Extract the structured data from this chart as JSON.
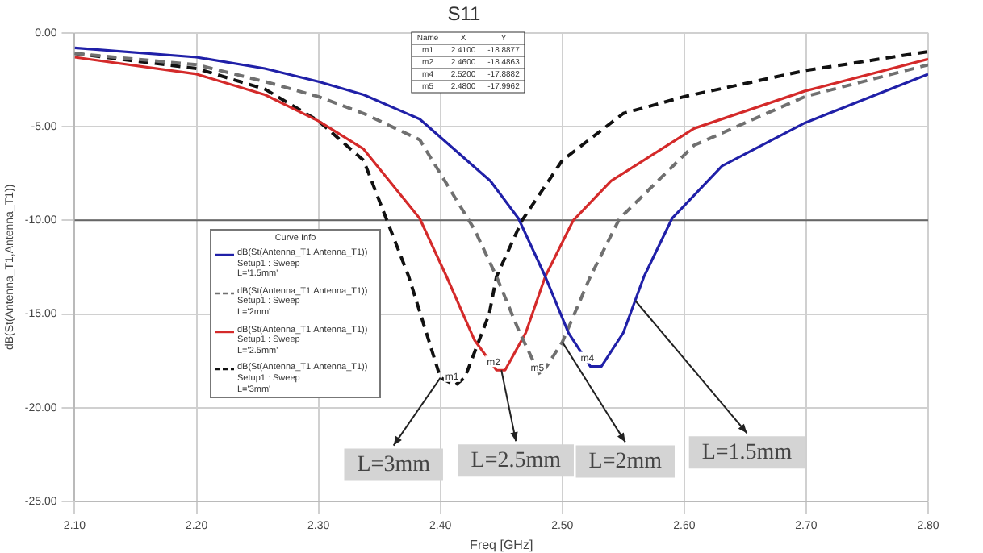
{
  "chart_data": {
    "type": "line",
    "title": "S11",
    "xlabel": "Freq [GHz]",
    "ylabel": "dB(St(Antenna_T1,Antenna_T1))",
    "legend_title": "Curve Info",
    "ref_lines": [
      {
        "axis": "y",
        "value": -10,
        "color": "#666666"
      }
    ],
    "legend": "left",
    "grid": true,
    "marker": "none",
    "xlim": [
      2.1,
      2.8
    ],
    "xticks": [
      {
        "value": 2.1,
        "label": "2.10"
      },
      {
        "value": 2.2,
        "label": "2.20"
      },
      {
        "value": 2.3,
        "label": "2.30"
      },
      {
        "value": 2.4,
        "label": "2.40"
      },
      {
        "value": 2.5,
        "label": "2.50"
      },
      {
        "value": 2.6,
        "label": "2.60"
      },
      {
        "value": 2.7,
        "label": "2.70"
      },
      {
        "value": 2.8,
        "label": "2.80"
      }
    ],
    "ylim": [
      -25,
      0
    ],
    "yticks": [
      {
        "value": -25,
        "label": "-25.00"
      },
      {
        "value": -20,
        "label": "-20.00"
      },
      {
        "value": -15,
        "label": "-15.00"
      },
      {
        "value": -10,
        "label": "-10.00"
      },
      {
        "value": -5,
        "label": "-5.00"
      },
      {
        "value": 0,
        "label": "0.00"
      }
    ],
    "series": [
      {
        "name": "dB(St(Antenna_T1,Antenna_T1))\nSetup1 : Sweep\nL='1.5mm'",
        "color": "#2020a8",
        "line_style": "solid",
        "x": [
          2.1,
          2.2,
          2.256,
          2.3,
          2.337,
          2.383,
          2.441,
          2.464,
          2.486,
          2.505,
          2.523,
          2.532,
          2.55,
          2.567,
          2.59,
          2.631,
          2.699,
          2.8
        ],
        "values": [
          -0.8,
          -1.3,
          -1.9,
          -2.6,
          -3.3,
          -4.6,
          -7.9,
          -9.9,
          -13,
          -16,
          -17.8,
          -17.8,
          -16,
          -13,
          -9.9,
          -7.1,
          -4.8,
          -2.2
        ]
      },
      {
        "name": "dB(St(Antenna_T1,Antenna_T1))\nSetup1 : Sweep\nL='2mm'",
        "color": "#707070",
        "line_style": "dashed",
        "x": [
          2.1,
          2.2,
          2.256,
          2.3,
          2.337,
          2.383,
          2.428,
          2.446,
          2.465,
          2.482,
          2.5,
          2.523,
          2.547,
          2.608,
          2.699,
          2.8
        ],
        "values": [
          -1.1,
          -1.7,
          -2.6,
          -3.4,
          -4.3,
          -5.7,
          -10.5,
          -13,
          -16,
          -18.3,
          -16.5,
          -13,
          -9.9,
          -6,
          -3.4,
          -1.7
        ]
      },
      {
        "name": "dB(St(Antenna_T1,Antenna_T1))\nSetup1 : Sweep\nL='2.5mm'",
        "color": "#d42a2a",
        "line_style": "solid",
        "x": [
          2.1,
          2.2,
          2.256,
          2.3,
          2.337,
          2.383,
          2.405,
          2.428,
          2.446,
          2.453,
          2.47,
          2.486,
          2.509,
          2.54,
          2.608,
          2.699,
          2.8
        ],
        "values": [
          -1.3,
          -2.2,
          -3.3,
          -4.7,
          -6.2,
          -9.9,
          -13,
          -16.4,
          -18,
          -18,
          -16,
          -13,
          -10,
          -7.9,
          -5.1,
          -3.1,
          -1.4
        ]
      },
      {
        "name": "dB(St(Antenna_T1,Antenna_T1))\nSetup1 : Sweep\nL='3mm'",
        "color": "#111111",
        "line_style": "dashed",
        "x": [
          2.1,
          2.2,
          2.256,
          2.3,
          2.337,
          2.374,
          2.4,
          2.412,
          2.42,
          2.44,
          2.446,
          2.467,
          2.5,
          2.55,
          2.6,
          2.7,
          2.8
        ],
        "values": [
          -1.1,
          -1.9,
          -3,
          -4.7,
          -6.8,
          -13,
          -18.4,
          -18.8,
          -18.4,
          -15,
          -13,
          -10,
          -6.8,
          -4.3,
          -3.4,
          -2,
          -1
        ]
      }
    ],
    "annotations": [
      "Name X Y",
      "m1 2.4100 -18.8877",
      "m2 2.4600 -18.4863",
      "m4 2.5200 -17.8882",
      "m5 2.4800 -17.9962",
      {
        "text": "m1",
        "x": 2.412,
        "y": -18.8
      },
      {
        "text": "m2",
        "x": 2.446,
        "y": -18
      },
      {
        "text": "m4",
        "x": 2.523,
        "y": -17.8
      },
      {
        "text": "m5",
        "x": 2.482,
        "y": -18.3
      },
      {
        "text": "L=3mm",
        "x": 2.4,
        "y": -18.4
      },
      {
        "text": "L=2.5mm",
        "x": 2.45,
        "y": -18
      },
      {
        "text": "L=2mm",
        "x": 2.5,
        "y": -16.5
      },
      {
        "text": "L=1.5mm",
        "x": 2.56,
        "y": -14.3
      }
    ]
  }
}
